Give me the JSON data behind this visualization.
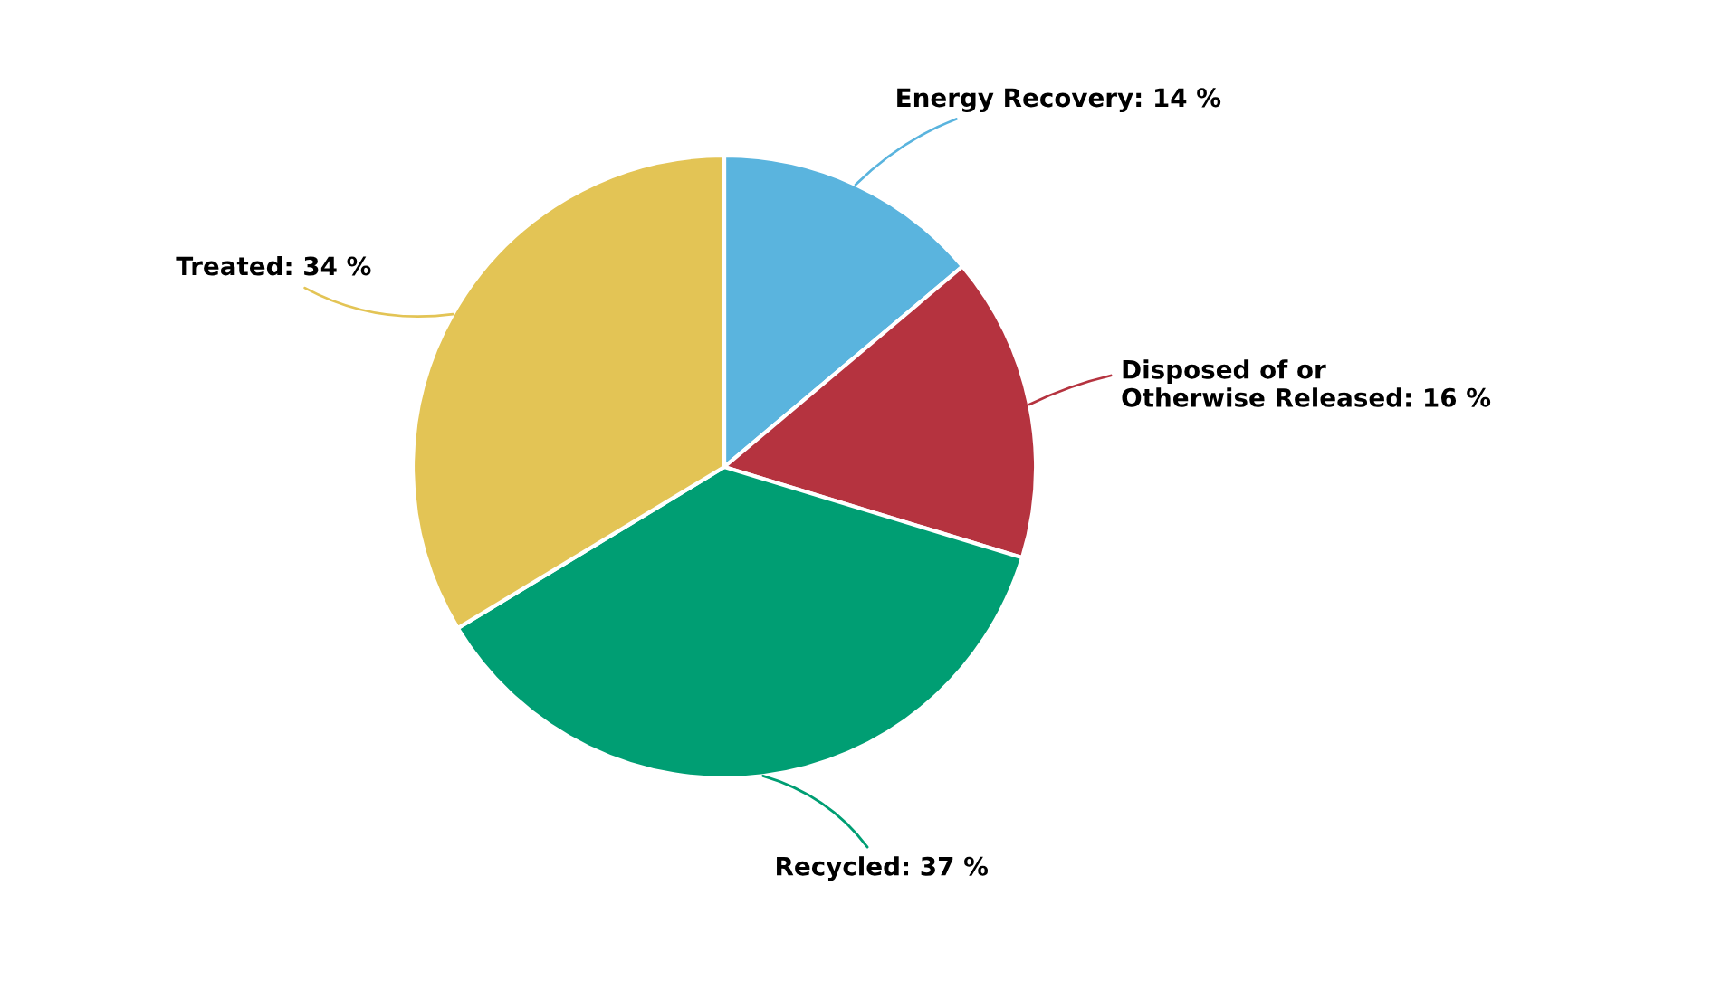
{
  "chart_data": {
    "type": "pie",
    "categories": [
      "Energy Recovery",
      "Disposed of or\nOtherwise Released",
      "Recycled",
      "Treated"
    ],
    "values": [
      14,
      16,
      37,
      34
    ],
    "value_labels": [
      "14 %",
      "16 %",
      "37 %",
      "34 %"
    ],
    "colors": [
      "#5ab4de",
      "#b5333f",
      "#009e73",
      "#e3c455"
    ],
    "legend": false
  }
}
